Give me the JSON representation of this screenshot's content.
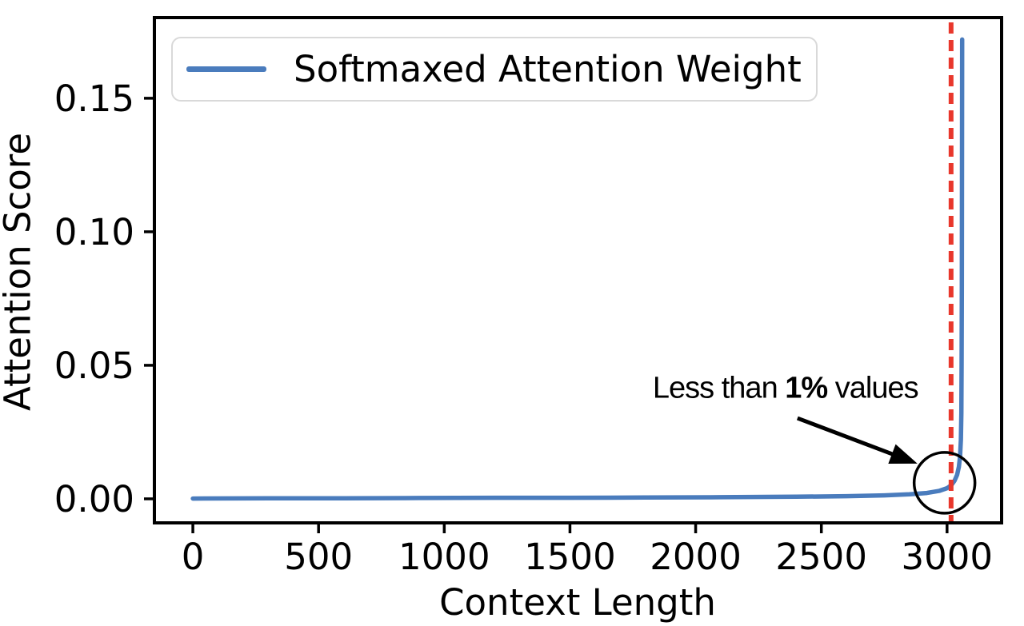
{
  "figure": {
    "background": "#ffffff"
  },
  "annotation": {
    "prefix": "Less than ",
    "bold": "1%",
    "suffix": " values"
  },
  "chart_data": {
    "type": "line",
    "title": "",
    "xlabel": "Context Length",
    "ylabel": "Attention Score",
    "xlim": [
      -153,
      3217
    ],
    "ylim": [
      -0.009,
      0.1802
    ],
    "x_ticks": [
      0,
      500,
      1000,
      1500,
      2000,
      2500,
      3000
    ],
    "x_tick_labels": [
      "0",
      "500",
      "1000",
      "1500",
      "2000",
      "2500",
      "3000"
    ],
    "y_ticks": [
      0,
      0.05,
      0.1,
      0.15
    ],
    "y_tick_labels": [
      "0.00",
      "0.05",
      "0.10",
      "0.15"
    ],
    "grid": false,
    "legend_position": "upper left",
    "series": [
      {
        "name": "Softmaxed Attention Weight",
        "color": "#4a7cbd",
        "points": [
          [
            0,
            0.0001
          ],
          [
            300,
            0.0002
          ],
          [
            600,
            0.0002
          ],
          [
            900,
            0.0003
          ],
          [
            1200,
            0.0004
          ],
          [
            1500,
            0.0004
          ],
          [
            1800,
            0.0005
          ],
          [
            2100,
            0.0006
          ],
          [
            2400,
            0.0008
          ],
          [
            2600,
            0.001
          ],
          [
            2750,
            0.0013
          ],
          [
            2850,
            0.0017
          ],
          [
            2920,
            0.0022
          ],
          [
            2970,
            0.003
          ],
          [
            3000,
            0.004
          ],
          [
            3016,
            0.005
          ],
          [
            3030,
            0.0068
          ],
          [
            3040,
            0.009
          ],
          [
            3047,
            0.012
          ],
          [
            3052,
            0.016
          ],
          [
            3055,
            0.022
          ],
          [
            3057,
            0.032
          ],
          [
            3058,
            0.05
          ],
          [
            3059,
            0.08
          ],
          [
            3060,
            0.172
          ]
        ]
      }
    ],
    "vline": {
      "x": 3016,
      "color": "#e8372c",
      "style": "dashed",
      "dash": [
        14,
        8
      ]
    },
    "circle_annotation": {
      "x": 2990,
      "y": 0.006,
      "radius_px": 38,
      "color": "#000000"
    },
    "arrow_annotation": {
      "from": [
        2405,
        0.0302
      ],
      "to": [
        2882,
        0.0132
      ],
      "color": "#000000"
    },
    "note_annotation": {
      "x": 2357,
      "y": 0.0413,
      "text": "Less than 1% values"
    }
  }
}
